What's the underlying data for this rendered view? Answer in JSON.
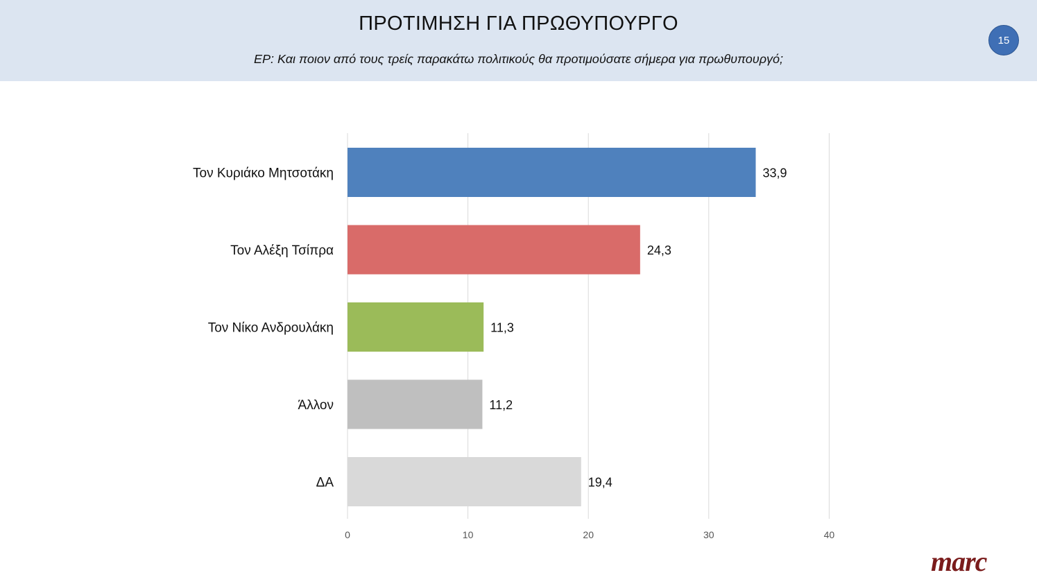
{
  "header": {
    "title": "ΠΡΟΤΙΜΗΣΗ ΓΙΑ ΠΡΩΘΥΠΟΥΡΓΟ",
    "question": "ΕΡ: Και ποιον από τους τρείς παρακάτω πολιτικούς θα προτιμούσατε σήμερα για πρωθυπουργό;",
    "page_number": "15"
  },
  "logo": {
    "text": "marc",
    "color": "#7a1b1b"
  },
  "chart_data": {
    "type": "bar",
    "orientation": "horizontal",
    "categories": [
      "Τον Κυριάκο Μητσοτάκη",
      "Τον Αλέξη Τσίπρα",
      "Τον Νίκο Ανδρουλάκη",
      "Άλλον",
      "ΔΑ"
    ],
    "values": [
      33.9,
      24.3,
      11.3,
      11.2,
      19.4
    ],
    "value_labels": [
      "33,9",
      "24,3",
      "11,3",
      "11,2",
      "19,4"
    ],
    "colors": [
      "#4f81bd",
      "#d96b69",
      "#9bbb59",
      "#bfbfbf",
      "#d9d9d9"
    ],
    "xlim": [
      0,
      40
    ],
    "xticks": [
      0,
      10,
      20,
      30,
      40
    ],
    "grid": true,
    "legend": "none",
    "title": "",
    "xlabel": "",
    "ylabel": ""
  }
}
